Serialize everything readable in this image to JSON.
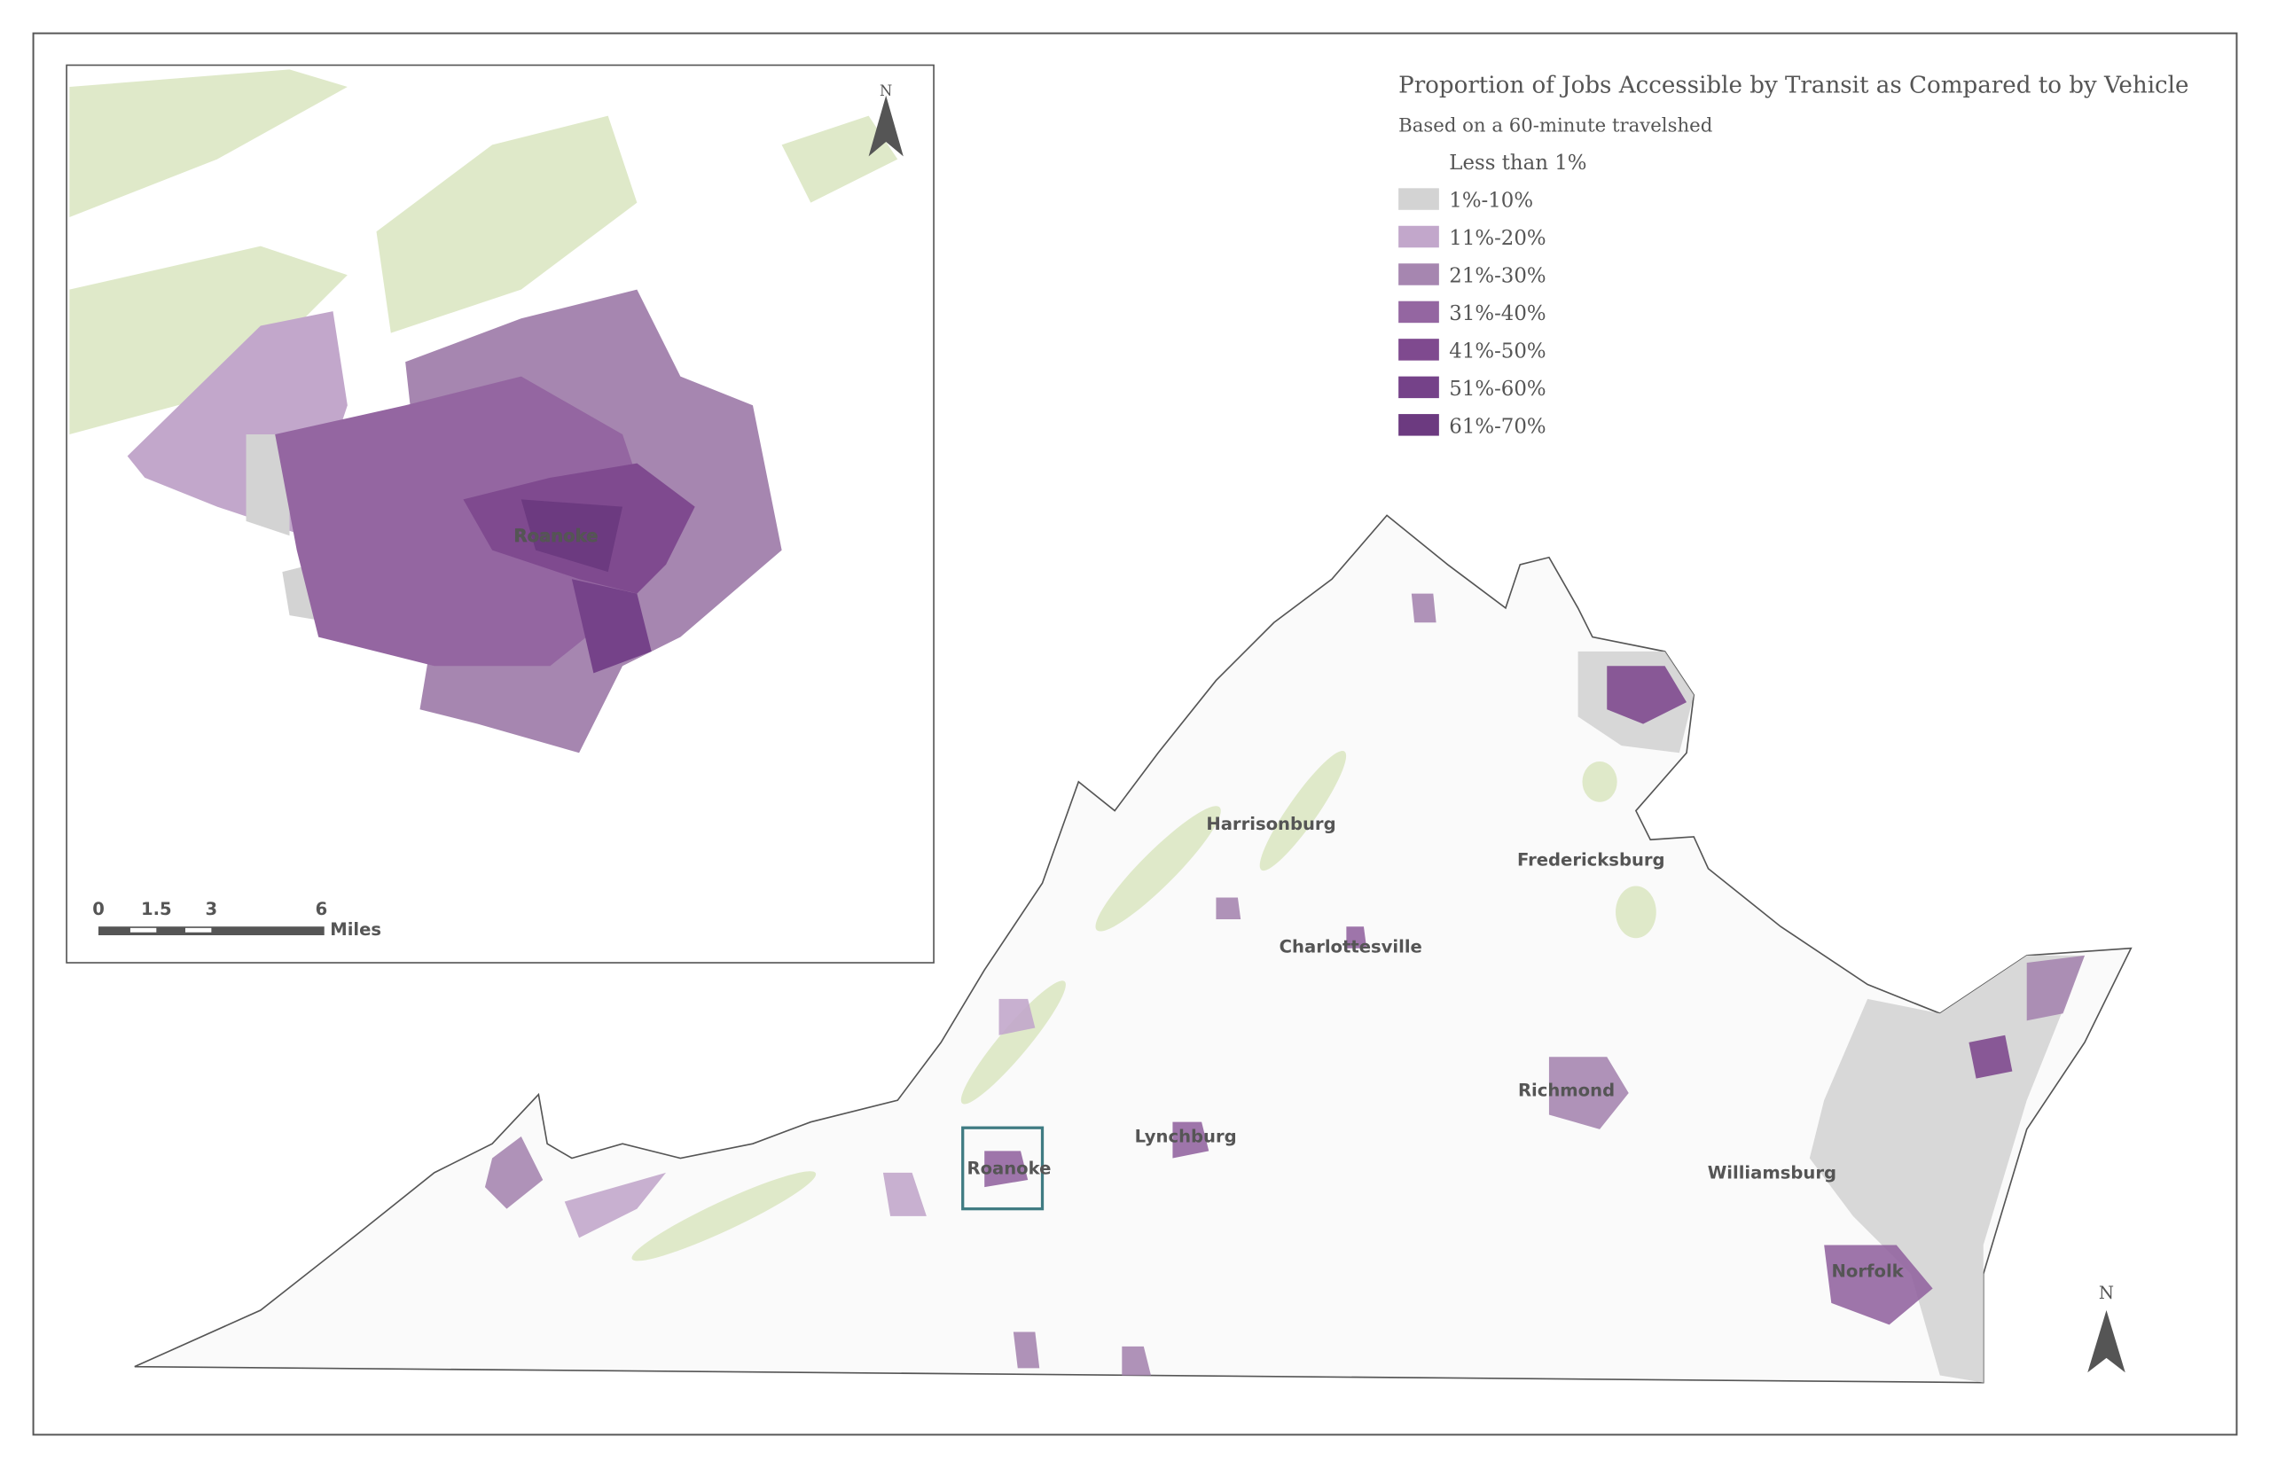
{
  "title": "Proportion of Jobs Accessible by Transit as Compared to by Vehicle",
  "subtitle": "Based on a 60-minute travelshed",
  "legend": [
    {
      "label": "Less than 1%",
      "color": "#ffffff"
    },
    {
      "label": "1%-10%",
      "color": "#d3d3d3"
    },
    {
      "label": "11%-20%",
      "color": "#c2a7cb"
    },
    {
      "label": "21%-30%",
      "color": "#a686b0"
    },
    {
      "label": "31%-40%",
      "color": "#9466a1"
    },
    {
      "label": "41%-50%",
      "color": "#7f4a8f"
    },
    {
      "label": "51%-60%",
      "color": "#754289"
    },
    {
      "label": "61%-70%",
      "color": "#6c3a80"
    }
  ],
  "cities": [
    "Harrisonburg",
    "Fredericksburg",
    "Charlottesville",
    "Richmond",
    "Lynchburg",
    "Roanoke",
    "Williamsburg",
    "Norfolk"
  ],
  "inset": {
    "label": "Roanoke",
    "scale_labels": [
      "0",
      "1.5",
      "3",
      "6"
    ],
    "scale_unit": "Miles"
  },
  "north": "N"
}
